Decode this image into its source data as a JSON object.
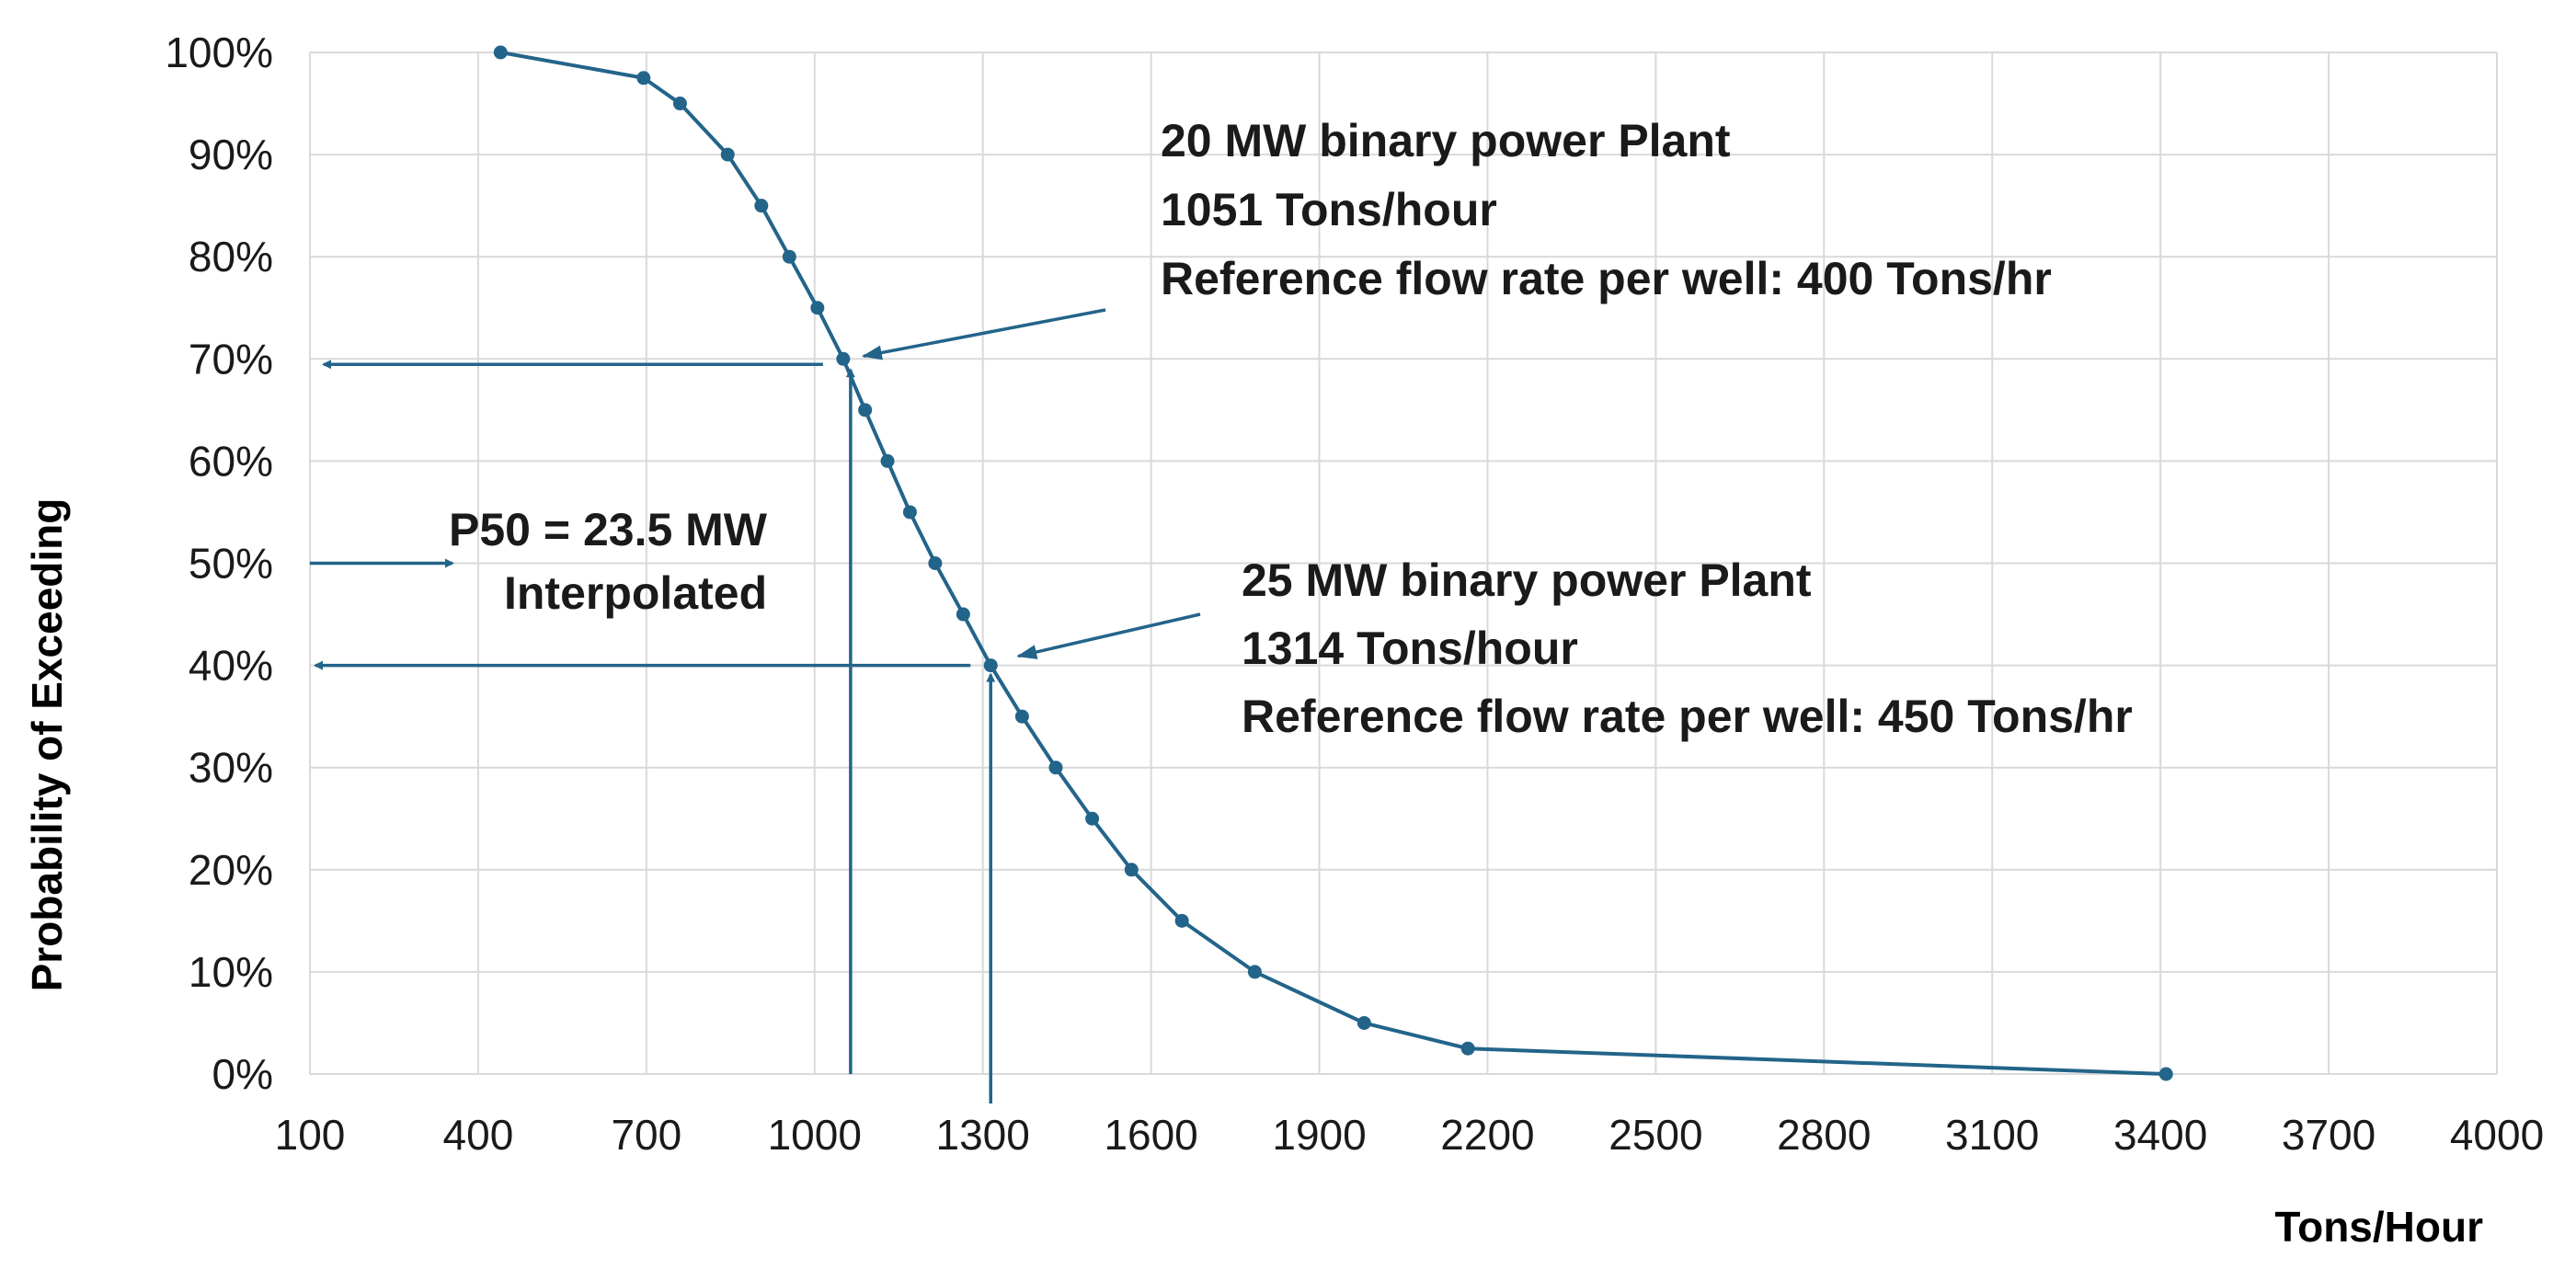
{
  "chart_data": {
    "type": "line",
    "title": "",
    "xlabel": "Tons/Hour",
    "ylabel": "Probability of Exceeding",
    "xlim": [
      100,
      4000
    ],
    "ylim": [
      0,
      100
    ],
    "x_ticks": [
      100,
      400,
      700,
      1000,
      1300,
      1600,
      1900,
      2200,
      2500,
      2800,
      3100,
      3400,
      3700,
      4000
    ],
    "x_tick_labels": [
      "100",
      "400",
      "700",
      "1000",
      "1300",
      "1600",
      "1900",
      "2200",
      "2500",
      "2800",
      "3100",
      "3400",
      "3700",
      "4000"
    ],
    "y_ticks": [
      0,
      10,
      20,
      30,
      40,
      50,
      60,
      70,
      80,
      90,
      100
    ],
    "y_tick_labels": [
      "0%",
      "10%",
      "20%",
      "30%",
      "40%",
      "50%",
      "60%",
      "70%",
      "80%",
      "90%",
      "100%"
    ],
    "grid": true,
    "series": [
      {
        "name": "Probability of Exceeding",
        "color": "#23648a",
        "x": [
          440,
          695,
          760,
          845,
          905,
          955,
          1005,
          1051,
          1090,
          1130,
          1170,
          1215,
          1265,
          1314,
          1370,
          1430,
          1495,
          1565,
          1655,
          1785,
          1980,
          2165,
          3410
        ],
        "y": [
          100,
          97.5,
          95,
          90,
          85,
          80,
          75,
          70,
          65,
          60,
          55,
          50,
          45,
          40,
          35,
          30,
          25,
          20,
          15,
          10,
          5,
          2.5,
          0
        ]
      }
    ],
    "annotations": {
      "plant20": {
        "lines": [
          "20 MW binary power Plant",
          "1051 Tons/hour",
          "Reference flow rate per well: 400 Tons/hr"
        ],
        "point": [
          1051,
          70
        ]
      },
      "plant25": {
        "lines": [
          "25 MW binary power Plant",
          "1314 Tons/hour",
          "Reference flow rate per well: 450 Tons/hr"
        ],
        "point": [
          1314,
          40
        ]
      },
      "p50": {
        "lines": [
          "P50  = 23.5 MW",
          "Interpolated"
        ],
        "y_value": 50
      }
    }
  }
}
